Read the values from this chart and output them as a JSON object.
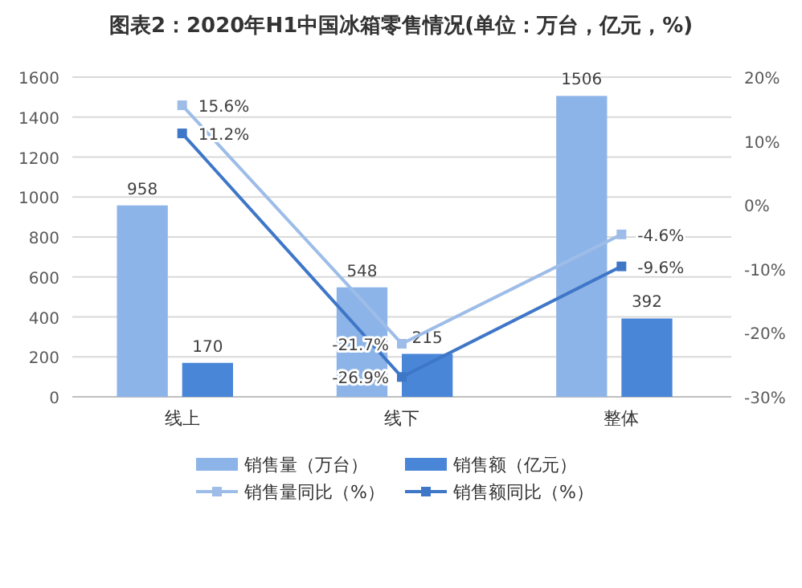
{
  "chart_data": {
    "type": "bar",
    "title": "图表2：2020年H1中国冰箱零售情况(单位：万台，亿元，%)",
    "categories": [
      "线上",
      "线下",
      "整体"
    ],
    "series": [
      {
        "name": "销售量（万台）",
        "color": "#8db4e8",
        "values": [
          958,
          548,
          1506
        ],
        "value_labels": [
          "958",
          "548",
          "1506"
        ]
      },
      {
        "name": "销售额（亿元）",
        "color": "#4a86d8",
        "values": [
          170,
          215,
          392
        ],
        "value_labels": [
          "170",
          "215",
          "392"
        ]
      },
      {
        "name": "销售量同比（%）",
        "type": "line",
        "axis": "y2",
        "color": "#9dbde8",
        "values": [
          15.6,
          -21.7,
          -4.6
        ],
        "value_labels": [
          "15.6%",
          "-21.7%",
          "-4.6%"
        ]
      },
      {
        "name": "销售额同比（%）",
        "type": "line",
        "axis": "y2",
        "color": "#3f77c8",
        "values": [
          11.2,
          -26.9,
          -9.6
        ],
        "value_labels": [
          "11.2%",
          "-26.9%",
          "-9.6%"
        ]
      }
    ],
    "ylim": [
      0,
      1600
    ],
    "yticks": [
      0,
      200,
      400,
      600,
      800,
      1000,
      1200,
      1400,
      1600
    ],
    "y2lim": [
      -30,
      20
    ],
    "y2ticks": [
      {
        "value": -30,
        "label": "-30%"
      },
      {
        "value": -20,
        "label": "-20%"
      },
      {
        "value": -10,
        "label": "-10%"
      },
      {
        "value": 0,
        "label": "0%"
      },
      {
        "value": 10,
        "label": "10%"
      },
      {
        "value": 20,
        "label": "20%"
      }
    ],
    "grid": "y",
    "legend": "bottom",
    "marker": "square"
  }
}
